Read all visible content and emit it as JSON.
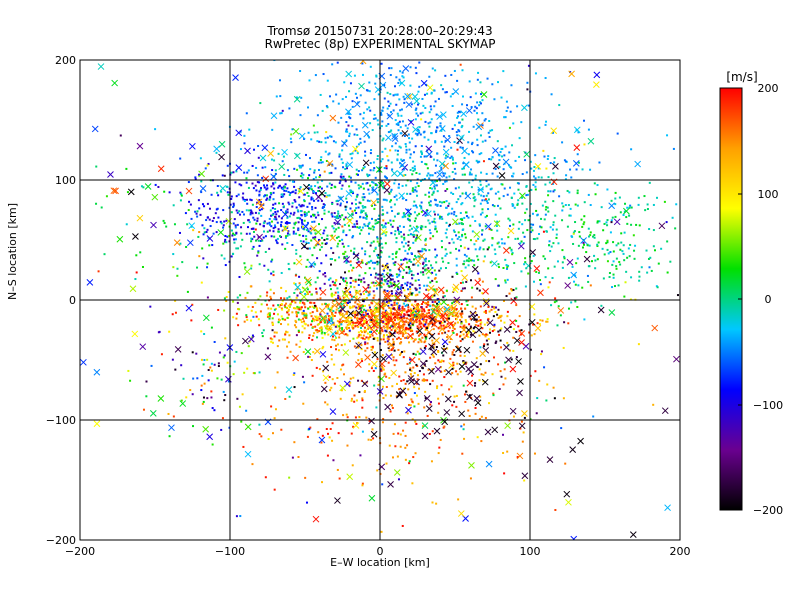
{
  "chart_data": {
    "type": "scatter",
    "title": "Tromsø 20150731 20:28:00–20:29:43",
    "subtitle": "RwPretec (8p) EXPERIMENTAL SKYMAP",
    "xlabel": "E–W location [km]",
    "ylabel": "N–S location [km]",
    "xlim": [
      -200,
      200
    ],
    "ylim": [
      -200,
      200
    ],
    "xticks": [
      -200,
      -100,
      0,
      100,
      200
    ],
    "yticks": [
      -200,
      -100,
      0,
      100,
      200
    ],
    "xtick_labels": [
      "−200",
      "−100",
      "0",
      "100",
      "200"
    ],
    "ytick_labels": [
      "−200",
      "−100",
      "0",
      "100",
      "200"
    ],
    "grid": true,
    "colorbar": {
      "unit": "[m/s]",
      "range": [
        -200,
        200
      ],
      "ticks": [
        200,
        100,
        0,
        -100,
        -200
      ],
      "tick_labels": [
        "200",
        "100",
        "0",
        "−100",
        "−200"
      ],
      "colors": [
        "#000000",
        "#6a0090",
        "#0000ff",
        "#00c8ff",
        "#00e000",
        "#ffff00",
        "#ffa000",
        "#ff0000"
      ]
    },
    "markers": [
      "dot",
      "cross"
    ],
    "clusters": [
      {
        "cx": 0,
        "cy": -15,
        "sx": 45,
        "sy": 12,
        "n": 700,
        "vmin": 80,
        "vmax": 200,
        "marker": "dot"
      },
      {
        "cx": 20,
        "cy": -15,
        "sx": 20,
        "sy": 6,
        "n": 250,
        "vmin": 160,
        "vmax": 200,
        "marker": "dot"
      },
      {
        "cx": -40,
        "cy": -10,
        "sx": 25,
        "sy": 10,
        "n": 200,
        "vmin": -10,
        "vmax": 200,
        "marker": "dot"
      },
      {
        "cx": 5,
        "cy": 15,
        "sx": 25,
        "sy": 20,
        "n": 300,
        "vmin": -200,
        "vmax": 60,
        "marker": "dot"
      },
      {
        "cx": -70,
        "cy": 75,
        "sx": 30,
        "sy": 20,
        "n": 380,
        "vmin": -120,
        "vmax": -60,
        "marker": "dot"
      },
      {
        "cx": 30,
        "cy": 100,
        "sx": 55,
        "sy": 35,
        "n": 800,
        "vmin": -60,
        "vmax": -10,
        "marker": "dot"
      },
      {
        "cx": 20,
        "cy": 160,
        "sx": 40,
        "sy": 25,
        "n": 240,
        "vmin": -70,
        "vmax": -20,
        "marker": "dot"
      },
      {
        "cx": -10,
        "cy": 60,
        "sx": 70,
        "sy": 25,
        "n": 550,
        "vmin": -20,
        "vmax": 40,
        "marker": "dot"
      },
      {
        "cx": 140,
        "cy": 45,
        "sx": 30,
        "sy": 25,
        "n": 220,
        "vmin": -30,
        "vmax": 40,
        "marker": "dot"
      },
      {
        "cx": 20,
        "cy": -55,
        "sx": 35,
        "sy": 22,
        "n": 260,
        "vmin": 100,
        "vmax": 200,
        "marker": "dot"
      },
      {
        "cx": 10,
        "cy": -110,
        "sx": 45,
        "sy": 28,
        "n": 140,
        "vmin": 120,
        "vmax": 200,
        "marker": "dot"
      },
      {
        "cx": -110,
        "cy": -65,
        "sx": 25,
        "sy": 20,
        "n": 70,
        "vmin": -200,
        "vmax": 200,
        "marker": "dot"
      },
      {
        "cx": 45,
        "cy": -30,
        "sx": 30,
        "sy": 25,
        "n": 110,
        "vmin": -200,
        "vmax": -170,
        "marker": "dot"
      },
      {
        "cx": 0,
        "cy": 10,
        "sx": 80,
        "sy": 80,
        "n": 300,
        "vmin": -200,
        "vmax": 200,
        "marker": "dot"
      },
      {
        "cx": 0,
        "cy": 20,
        "sx": 110,
        "sy": 95,
        "n": 260,
        "vmin": -200,
        "vmax": 200,
        "marker": "cross"
      },
      {
        "cx": 10,
        "cy": -10,
        "sx": 35,
        "sy": 18,
        "n": 90,
        "vmin": 100,
        "vmax": 200,
        "marker": "cross"
      },
      {
        "cx": 50,
        "cy": -60,
        "sx": 35,
        "sy": 40,
        "n": 70,
        "vmin": -200,
        "vmax": -170,
        "marker": "cross"
      },
      {
        "cx": 20,
        "cy": 140,
        "sx": 50,
        "sy": 40,
        "n": 60,
        "vmin": -60,
        "vmax": -20,
        "marker": "cross"
      }
    ]
  }
}
